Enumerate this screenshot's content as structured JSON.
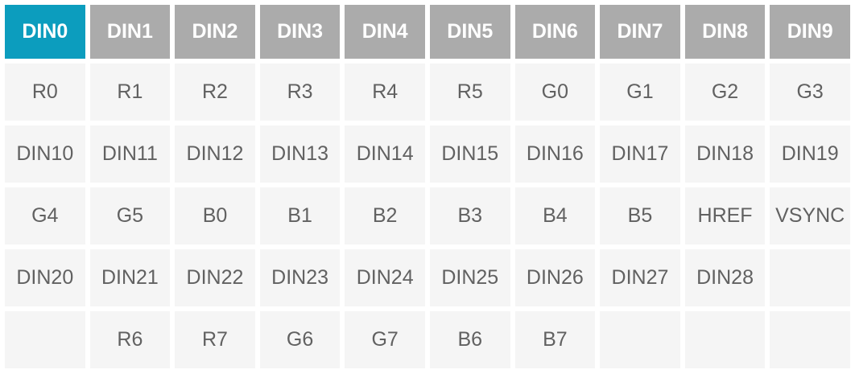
{
  "colors": {
    "accent": "#0C9DBE",
    "header_bg": "#ABABAB",
    "header_text": "#FFFFFF",
    "cell_bg": "#F5F5F5",
    "cell_text": "#616161",
    "page_bg": "#FFFFFF"
  },
  "table": {
    "highlighted_header": "DIN0",
    "header_row": [
      "DIN0",
      "DIN1",
      "DIN2",
      "DIN3",
      "DIN4",
      "DIN5",
      "DIN6",
      "DIN7",
      "DIN8",
      "DIN9"
    ],
    "rows": [
      [
        "R0",
        "R1",
        "R2",
        "R3",
        "R4",
        "R5",
        "G0",
        "G1",
        "G2",
        "G3"
      ],
      [
        "DIN10",
        "DIN11",
        "DIN12",
        "DIN13",
        "DIN14",
        "DIN15",
        "DIN16",
        "DIN17",
        "DIN18",
        "DIN19"
      ],
      [
        "G4",
        "G5",
        "B0",
        "B1",
        "B2",
        "B3",
        "B4",
        "B5",
        "HREF",
        "VSYNC"
      ],
      [
        "DIN20",
        "DIN21",
        "DIN22",
        "DIN23",
        "DIN24",
        "DIN25",
        "DIN26",
        "DIN27",
        "DIN28",
        ""
      ],
      [
        "",
        "R6",
        "R7",
        "G6",
        "G7",
        "B6",
        "B7",
        "",
        "",
        ""
      ]
    ]
  }
}
